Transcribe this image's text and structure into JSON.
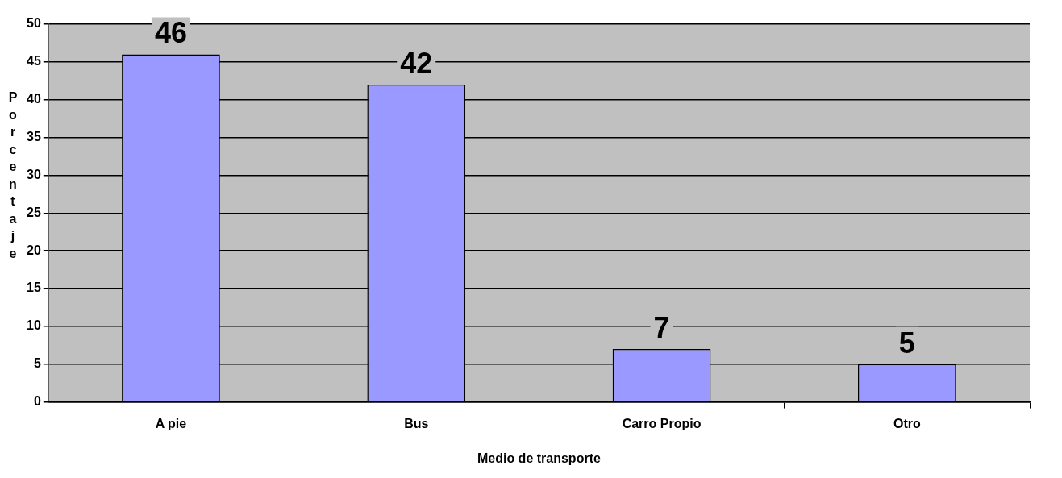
{
  "chart_data": {
    "type": "bar",
    "xlabel": "Medio de transporte",
    "ylabel": "Porcentaje",
    "categories": [
      "A pie",
      "Bus",
      "Carro Propio",
      "Otro"
    ],
    "values": [
      46,
      42,
      7,
      5
    ],
    "color": "#9999ff",
    "ylim": [
      0,
      50
    ],
    "yticks": [
      0,
      5,
      10,
      15,
      20,
      25,
      30,
      35,
      40,
      45,
      50
    ],
    "grid": "y",
    "data_labels": true
  }
}
